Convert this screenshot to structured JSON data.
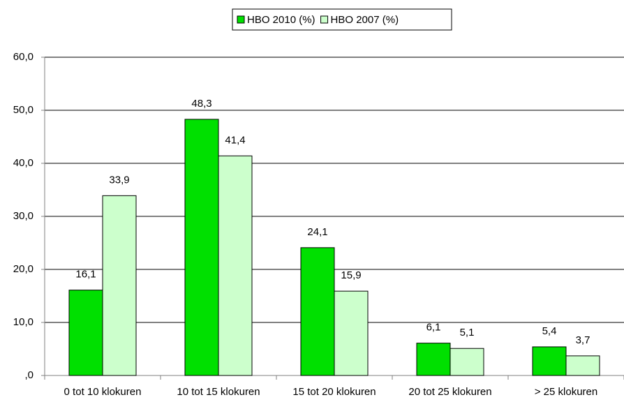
{
  "chart_data": {
    "type": "bar",
    "categories": [
      "0 tot 10 klokuren",
      "10 tot 15 klokuren",
      "15 tot 20 klokuren",
      "20 tot 25 klokuren",
      "> 25 klokuren"
    ],
    "series": [
      {
        "name": "HBO 2010 (%)",
        "color": "#00e000",
        "values": [
          16.1,
          48.3,
          24.1,
          6.1,
          5.4
        ],
        "value_labels": [
          "16,1",
          "48,3",
          "24,1",
          "6,1",
          "5,4"
        ]
      },
      {
        "name": "HBO 2007 (%)",
        "color": "#ccffcc",
        "values": [
          33.9,
          41.4,
          15.9,
          5.1,
          3.7
        ],
        "value_labels": [
          "33,9",
          "41,4",
          "15,9",
          "5,1",
          "3,7"
        ]
      }
    ],
    "ylim": [
      0,
      60
    ],
    "yticks": [
      {
        "value": 0,
        "label": ",0"
      },
      {
        "value": 10,
        "label": "10,0"
      },
      {
        "value": 20,
        "label": "20,0"
      },
      {
        "value": 30,
        "label": "30,0"
      },
      {
        "value": 40,
        "label": "40,0"
      },
      {
        "value": 50,
        "label": "50,0"
      },
      {
        "value": 60,
        "label": "60,0"
      }
    ],
    "grid": true,
    "legend": "top"
  }
}
